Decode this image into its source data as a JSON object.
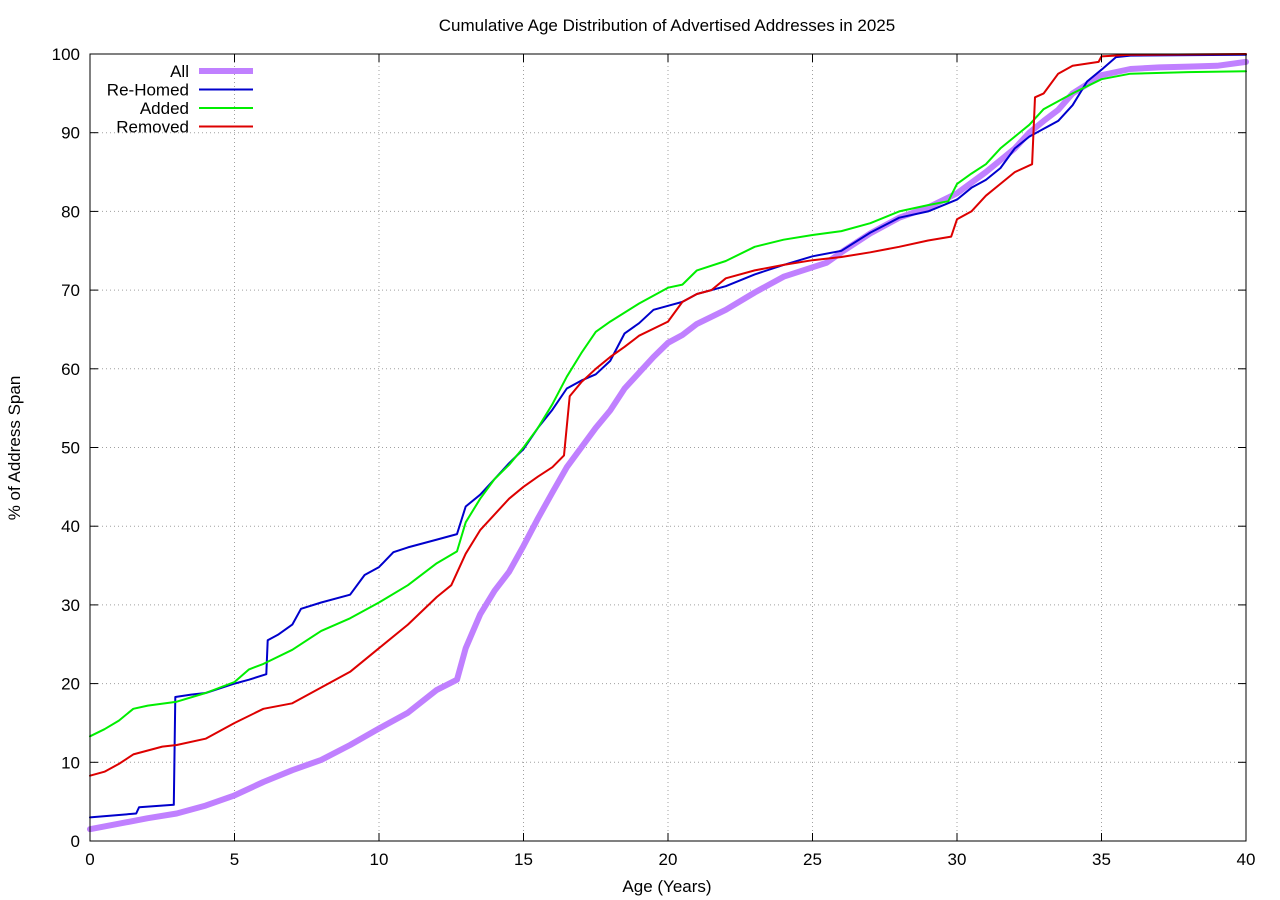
{
  "chart_data": {
    "type": "line",
    "title": "Cumulative Age Distribution of Advertised Addresses in 2025",
    "xlabel": "Age (Years)",
    "ylabel": "% of Address Span",
    "xlim": [
      0,
      40
    ],
    "ylim": [
      0,
      100
    ],
    "xticks": [
      "0",
      "5",
      "10",
      "15",
      "20",
      "25",
      "30",
      "35",
      "40"
    ],
    "yticks": [
      "0",
      "10",
      "20",
      "30",
      "40",
      "50",
      "60",
      "70",
      "80",
      "90",
      "100"
    ],
    "grid": true,
    "legend_position": "top-left",
    "series": [
      {
        "name": "All",
        "color": "#c080ff",
        "width": 6,
        "points": [
          [
            0,
            1.5
          ],
          [
            1,
            2.2
          ],
          [
            2,
            2.9
          ],
          [
            3,
            3.5
          ],
          [
            4,
            4.5
          ],
          [
            5,
            5.8
          ],
          [
            6,
            7.5
          ],
          [
            7,
            9.0
          ],
          [
            8,
            10.3
          ],
          [
            9,
            12.2
          ],
          [
            10,
            14.3
          ],
          [
            11,
            16.3
          ],
          [
            12,
            19.2
          ],
          [
            12.7,
            20.5
          ],
          [
            13,
            24.5
          ],
          [
            13.5,
            28.8
          ],
          [
            14,
            31.8
          ],
          [
            14.5,
            34.2
          ],
          [
            15,
            37.5
          ],
          [
            15.5,
            41.0
          ],
          [
            16,
            44.3
          ],
          [
            16.5,
            47.5
          ],
          [
            17,
            50.0
          ],
          [
            17.5,
            52.5
          ],
          [
            18,
            54.7
          ],
          [
            18.5,
            57.5
          ],
          [
            19,
            59.5
          ],
          [
            19.5,
            61.5
          ],
          [
            20,
            63.3
          ],
          [
            20.5,
            64.3
          ],
          [
            21,
            65.7
          ],
          [
            22,
            67.5
          ],
          [
            23,
            69.7
          ],
          [
            24,
            71.7
          ],
          [
            25,
            72.9
          ],
          [
            25.5,
            73.5
          ],
          [
            26,
            74.8
          ],
          [
            27,
            77.2
          ],
          [
            28,
            79.2
          ],
          [
            29,
            80.5
          ],
          [
            30,
            82.3
          ],
          [
            31,
            85.0
          ],
          [
            32,
            88.0
          ],
          [
            32.5,
            90.0
          ],
          [
            33,
            91.5
          ],
          [
            33.5,
            92.9
          ],
          [
            34,
            95.0
          ],
          [
            35,
            97.3
          ],
          [
            36,
            98.1
          ],
          [
            37,
            98.3
          ],
          [
            38,
            98.4
          ],
          [
            39,
            98.5
          ],
          [
            40,
            99.0
          ]
        ]
      },
      {
        "name": "Re-Homed",
        "color": "#0000cc",
        "width": 2,
        "points": [
          [
            0,
            3.0
          ],
          [
            1,
            3.3
          ],
          [
            1.6,
            3.5
          ],
          [
            1.7,
            4.3
          ],
          [
            2.9,
            4.6
          ],
          [
            2.95,
            18.3
          ],
          [
            3.5,
            18.6
          ],
          [
            4,
            18.8
          ],
          [
            5,
            20.0
          ],
          [
            5.5,
            20.5
          ],
          [
            6.1,
            21.2
          ],
          [
            6.15,
            25.5
          ],
          [
            6.5,
            26.2
          ],
          [
            7,
            27.5
          ],
          [
            7.3,
            29.5
          ],
          [
            8,
            30.3
          ],
          [
            9,
            31.3
          ],
          [
            9.5,
            33.8
          ],
          [
            10,
            34.8
          ],
          [
            10.5,
            36.7
          ],
          [
            11,
            37.3
          ],
          [
            12,
            38.3
          ],
          [
            12.7,
            39.0
          ],
          [
            13,
            42.5
          ],
          [
            13.5,
            44.0
          ],
          [
            14,
            46.0
          ],
          [
            14.5,
            48.0
          ],
          [
            15,
            49.8
          ],
          [
            15.5,
            52.5
          ],
          [
            16,
            54.8
          ],
          [
            16.5,
            57.5
          ],
          [
            17,
            58.5
          ],
          [
            17.5,
            59.3
          ],
          [
            18,
            61.0
          ],
          [
            18.5,
            64.5
          ],
          [
            19,
            65.8
          ],
          [
            19.5,
            67.5
          ],
          [
            20,
            68.0
          ],
          [
            20.5,
            68.5
          ],
          [
            21,
            69.5
          ],
          [
            22,
            70.5
          ],
          [
            23,
            72.0
          ],
          [
            24,
            73.2
          ],
          [
            25,
            74.3
          ],
          [
            26,
            75.0
          ],
          [
            27,
            77.3
          ],
          [
            28,
            79.2
          ],
          [
            29,
            80.0
          ],
          [
            30,
            81.5
          ],
          [
            30.5,
            83.0
          ],
          [
            31,
            84.0
          ],
          [
            31.5,
            85.5
          ],
          [
            32,
            88.0
          ],
          [
            32.5,
            89.5
          ],
          [
            33,
            90.5
          ],
          [
            33.5,
            91.5
          ],
          [
            34,
            93.5
          ],
          [
            34.5,
            96.5
          ],
          [
            35,
            98.0
          ],
          [
            35.5,
            99.6
          ],
          [
            36,
            99.8
          ],
          [
            40,
            99.9
          ]
        ]
      },
      {
        "name": "Added",
        "color": "#00ee00",
        "width": 2,
        "points": [
          [
            0,
            13.3
          ],
          [
            0.5,
            14.2
          ],
          [
            1,
            15.3
          ],
          [
            1.5,
            16.8
          ],
          [
            2,
            17.2
          ],
          [
            3,
            17.7
          ],
          [
            4,
            18.8
          ],
          [
            5,
            20.2
          ],
          [
            5.5,
            21.8
          ],
          [
            6,
            22.5
          ],
          [
            7,
            24.3
          ],
          [
            8,
            26.7
          ],
          [
            9,
            28.3
          ],
          [
            10,
            30.3
          ],
          [
            11,
            32.5
          ],
          [
            12,
            35.3
          ],
          [
            12.7,
            36.8
          ],
          [
            13,
            40.5
          ],
          [
            13.5,
            43.5
          ],
          [
            14,
            46.0
          ],
          [
            14.5,
            47.8
          ],
          [
            15,
            50.0
          ],
          [
            15.5,
            52.5
          ],
          [
            16,
            55.5
          ],
          [
            16.5,
            59.0
          ],
          [
            17,
            62.0
          ],
          [
            17.5,
            64.7
          ],
          [
            18,
            66.0
          ],
          [
            19,
            68.3
          ],
          [
            20,
            70.3
          ],
          [
            20.5,
            70.7
          ],
          [
            21,
            72.5
          ],
          [
            22,
            73.7
          ],
          [
            23,
            75.5
          ],
          [
            24,
            76.4
          ],
          [
            25,
            77.0
          ],
          [
            26,
            77.5
          ],
          [
            27,
            78.5
          ],
          [
            28,
            80.0
          ],
          [
            29,
            80.8
          ],
          [
            29.7,
            81.3
          ],
          [
            30,
            83.5
          ],
          [
            30.5,
            84.8
          ],
          [
            31,
            86.0
          ],
          [
            31.5,
            88.0
          ],
          [
            32,
            89.5
          ],
          [
            32.5,
            91.0
          ],
          [
            33,
            93.0
          ],
          [
            33.5,
            94.0
          ],
          [
            34,
            95.0
          ],
          [
            35,
            96.8
          ],
          [
            36,
            97.5
          ],
          [
            38,
            97.7
          ],
          [
            40,
            97.8
          ]
        ]
      },
      {
        "name": "Removed",
        "color": "#dd0000",
        "width": 2,
        "points": [
          [
            0,
            8.3
          ],
          [
            0.5,
            8.8
          ],
          [
            1,
            9.8
          ],
          [
            1.5,
            11.0
          ],
          [
            2,
            11.5
          ],
          [
            2.5,
            12.0
          ],
          [
            3,
            12.2
          ],
          [
            4,
            13.0
          ],
          [
            5,
            15.0
          ],
          [
            6,
            16.8
          ],
          [
            7,
            17.5
          ],
          [
            8,
            19.5
          ],
          [
            9,
            21.5
          ],
          [
            10,
            24.5
          ],
          [
            11,
            27.5
          ],
          [
            12,
            31.0
          ],
          [
            12.5,
            32.5
          ],
          [
            13,
            36.5
          ],
          [
            13.5,
            39.5
          ],
          [
            14,
            41.5
          ],
          [
            14.5,
            43.5
          ],
          [
            15,
            45.0
          ],
          [
            15.5,
            46.3
          ],
          [
            16,
            47.5
          ],
          [
            16.4,
            49.0
          ],
          [
            16.6,
            56.5
          ],
          [
            17,
            58.3
          ],
          [
            17.5,
            60.0
          ],
          [
            18,
            61.5
          ],
          [
            18.5,
            62.8
          ],
          [
            19,
            64.2
          ],
          [
            20,
            66.0
          ],
          [
            20.5,
            68.5
          ],
          [
            21,
            69.5
          ],
          [
            21.5,
            70.0
          ],
          [
            22,
            71.5
          ],
          [
            23,
            72.5
          ],
          [
            24,
            73.2
          ],
          [
            25,
            73.8
          ],
          [
            26,
            74.2
          ],
          [
            27,
            74.8
          ],
          [
            28,
            75.5
          ],
          [
            29,
            76.3
          ],
          [
            29.8,
            76.8
          ],
          [
            30,
            79.0
          ],
          [
            30.5,
            80.0
          ],
          [
            31,
            82.0
          ],
          [
            31.5,
            83.5
          ],
          [
            32,
            85.0
          ],
          [
            32.6,
            86.0
          ],
          [
            32.7,
            94.5
          ],
          [
            33,
            95.0
          ],
          [
            33.5,
            97.5
          ],
          [
            34,
            98.5
          ],
          [
            34.9,
            99.0
          ],
          [
            35,
            99.7
          ],
          [
            36,
            99.9
          ],
          [
            40,
            100
          ]
        ]
      }
    ]
  }
}
